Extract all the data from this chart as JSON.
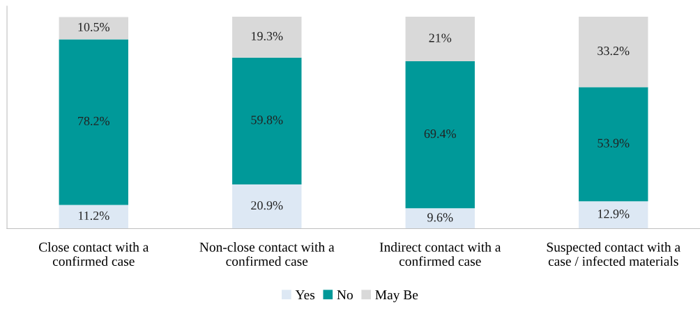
{
  "chart_data": {
    "type": "bar",
    "stacked": true,
    "data_labels": true,
    "legend": "bottom",
    "grid": false,
    "categories": [
      "Close contact with a\nconfirmed case",
      "Non-close contact with a\nconfirmed case",
      "Indirect contact with a\nconfirmed case",
      "Suspected contact with a\ncase / infected materials"
    ],
    "series": [
      {
        "name": "Yes",
        "color": "#dde8f4",
        "values": [
          11.2,
          20.9,
          9.6,
          12.9
        ],
        "value_labels": [
          "11.2%",
          "20.9%",
          "9.6%",
          "12.9%"
        ]
      },
      {
        "name": "No",
        "color": "#009999",
        "values": [
          78.2,
          59.8,
          69.4,
          53.9
        ],
        "value_labels": [
          "78.2%",
          "59.8%",
          "69.4%",
          "53.9%"
        ]
      },
      {
        "name": "May Be",
        "color": "#d9d9d9",
        "values": [
          10.5,
          19.3,
          21,
          33.2
        ],
        "value_labels": [
          "10.5%",
          "19.3%",
          "21%",
          "33.2%"
        ]
      }
    ]
  }
}
